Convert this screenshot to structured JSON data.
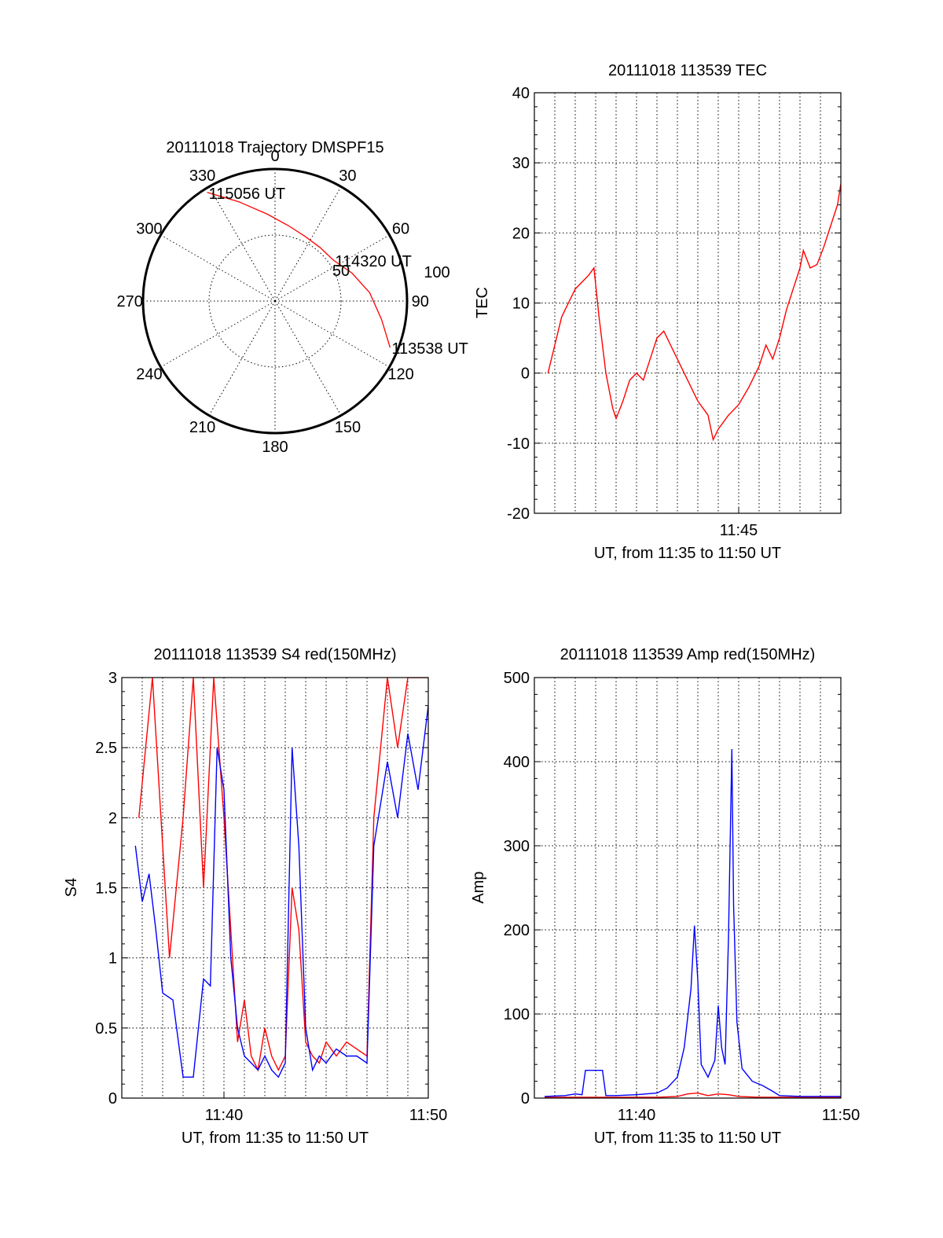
{
  "colors": {
    "red": "#ff0000",
    "blue": "#0000ff",
    "axis": "#000000",
    "grid": "#000000"
  },
  "chart_data": [
    {
      "type": "polar",
      "title": "20111018 Trajectory DMSPF15",
      "angle_labels": [
        "0",
        "30",
        "60",
        "90",
        "120",
        "150",
        "180",
        "210",
        "240",
        "270",
        "300",
        "330"
      ],
      "radius_labels": [
        "50",
        "100"
      ],
      "radius_max": 100,
      "series": [
        {
          "color": "red",
          "points": [
            [
              328,
              97
            ],
            [
              340,
              80
            ],
            [
              355,
              66
            ],
            [
              10,
              58
            ],
            [
              25,
              54
            ],
            [
              40,
              53
            ],
            [
              55,
              54
            ],
            [
              70,
              62
            ],
            [
              85,
              72
            ],
            [
              100,
              82
            ],
            [
              112,
              94
            ]
          ]
        }
      ],
      "annotations": [
        {
          "text": "115056 UT",
          "azimuth": 328,
          "radius": 97
        },
        {
          "text": "114320 UT",
          "azimuth": 55,
          "radius": 54
        },
        {
          "text": "113538 UT",
          "azimuth": 112,
          "radius": 94
        }
      ]
    },
    {
      "type": "line",
      "title": "20111018 113539 TEC",
      "xlabel": "UT, from 11:35 to 11:50 UT",
      "ylabel": "TEC",
      "xlim": [
        "11:35",
        "11:50"
      ],
      "ylim": [
        -20,
        40
      ],
      "yticks": [
        "-20",
        "-10",
        "0",
        "10",
        "20",
        "30",
        "40"
      ],
      "xticks": [
        "11:45"
      ],
      "grid": true,
      "series": [
        {
          "color": "red",
          "points": [
            [
              "11:35:40",
              0
            ],
            [
              "11:36:00",
              4
            ],
            [
              "11:36:20",
              8
            ],
            [
              "11:36:40",
              10
            ],
            [
              "11:37:00",
              12
            ],
            [
              "11:37:20",
              13
            ],
            [
              "11:37:40",
              14
            ],
            [
              "11:37:55",
              15
            ],
            [
              "11:38:10",
              8
            ],
            [
              "11:38:30",
              0
            ],
            [
              "11:38:50",
              -5
            ],
            [
              "11:39:00",
              -6.5
            ],
            [
              "11:39:20",
              -4
            ],
            [
              "11:39:40",
              -1
            ],
            [
              "11:40:00",
              0
            ],
            [
              "11:40:20",
              -1
            ],
            [
              "11:40:40",
              2
            ],
            [
              "11:41:00",
              5
            ],
            [
              "11:41:20",
              6
            ],
            [
              "11:41:40",
              4
            ],
            [
              "11:42:00",
              2
            ],
            [
              "11:42:30",
              -1
            ],
            [
              "11:43:00",
              -4
            ],
            [
              "11:43:30",
              -6
            ],
            [
              "11:43:45",
              -9.5
            ],
            [
              "11:44:00",
              -8
            ],
            [
              "11:44:30",
              -6
            ],
            [
              "11:45:00",
              -4.5
            ],
            [
              "11:45:30",
              -2
            ],
            [
              "11:46:00",
              1
            ],
            [
              "11:46:20",
              4
            ],
            [
              "11:46:40",
              2
            ],
            [
              "11:47:00",
              5
            ],
            [
              "11:47:20",
              9
            ],
            [
              "11:47:40",
              12
            ],
            [
              "11:48:00",
              15
            ],
            [
              "11:48:10",
              17.5
            ],
            [
              "11:48:30",
              15
            ],
            [
              "11:48:50",
              15.5
            ],
            [
              "11:49:10",
              18
            ],
            [
              "11:49:30",
              21
            ],
            [
              "11:49:50",
              24
            ],
            [
              "11:50:00",
              27
            ]
          ]
        }
      ]
    },
    {
      "type": "line",
      "title": "20111018 113539 S4 red(150MHz)",
      "xlabel": "UT, from 11:35 to 11:50 UT",
      "ylabel": "S4",
      "xlim": [
        "11:35",
        "11:50"
      ],
      "ylim": [
        0,
        3
      ],
      "yticks": [
        "0",
        "0.5",
        "1",
        "1.5",
        "2",
        "2.5",
        "3"
      ],
      "xticks": [
        "11:40",
        "11:50"
      ],
      "grid": true,
      "series": [
        {
          "color": "red",
          "name": "",
          "points": [
            [
              "11:35:50",
              2
            ],
            [
              "11:36:30",
              3
            ],
            [
              "11:37:20",
              1
            ],
            [
              "11:38:00",
              2
            ],
            [
              "11:38:30",
              3
            ],
            [
              "11:39:00",
              1.5
            ],
            [
              "11:39:30",
              3
            ],
            [
              "11:40:00",
              2
            ],
            [
              "11:40:20",
              1.2
            ],
            [
              "11:40:40",
              0.4
            ],
            [
              "11:41:00",
              0.7
            ],
            [
              "11:41:20",
              0.3
            ],
            [
              "11:41:40",
              0.2
            ],
            [
              "11:42:00",
              0.5
            ],
            [
              "11:42:20",
              0.3
            ],
            [
              "11:42:40",
              0.2
            ],
            [
              "11:43:00",
              0.3
            ],
            [
              "11:43:20",
              1.5
            ],
            [
              "11:43:40",
              1.2
            ],
            [
              "11:44:00",
              0.4
            ],
            [
              "11:44:20",
              0.3
            ],
            [
              "11:44:40",
              0.25
            ],
            [
              "11:45:00",
              0.4
            ],
            [
              "11:45:30",
              0.3
            ],
            [
              "11:46:00",
              0.4
            ],
            [
              "11:46:30",
              0.35
            ],
            [
              "11:47:00",
              0.3
            ],
            [
              "11:47:20",
              2
            ],
            [
              "11:48:00",
              3
            ],
            [
              "11:48:30",
              2.5
            ],
            [
              "11:49:00",
              3
            ],
            [
              "11:49:30",
              3
            ],
            [
              "11:50:00",
              3
            ]
          ]
        },
        {
          "color": "blue",
          "name": "",
          "points": [
            [
              "11:35:40",
              1.8
            ],
            [
              "11:36:00",
              1.4
            ],
            [
              "11:36:20",
              1.6
            ],
            [
              "11:36:40",
              1.2
            ],
            [
              "11:37:00",
              0.75
            ],
            [
              "11:37:30",
              0.7
            ],
            [
              "11:38:00",
              0.15
            ],
            [
              "11:38:30",
              0.15
            ],
            [
              "11:39:00",
              0.85
            ],
            [
              "11:39:20",
              0.8
            ],
            [
              "11:39:40",
              2.5
            ],
            [
              "11:40:00",
              2.2
            ],
            [
              "11:40:20",
              1.0
            ],
            [
              "11:40:40",
              0.5
            ],
            [
              "11:41:00",
              0.3
            ],
            [
              "11:41:20",
              0.25
            ],
            [
              "11:41:40",
              0.2
            ],
            [
              "11:42:00",
              0.3
            ],
            [
              "11:42:20",
              0.2
            ],
            [
              "11:42:40",
              0.15
            ],
            [
              "11:43:00",
              0.25
            ],
            [
              "11:43:20",
              2.5
            ],
            [
              "11:43:40",
              1.8
            ],
            [
              "11:44:00",
              0.5
            ],
            [
              "11:44:20",
              0.2
            ],
            [
              "11:44:40",
              0.3
            ],
            [
              "11:45:00",
              0.25
            ],
            [
              "11:45:30",
              0.35
            ],
            [
              "11:46:00",
              0.3
            ],
            [
              "11:46:30",
              0.3
            ],
            [
              "11:47:00",
              0.25
            ],
            [
              "11:47:20",
              1.8
            ],
            [
              "11:48:00",
              2.4
            ],
            [
              "11:48:30",
              2.0
            ],
            [
              "11:49:00",
              2.6
            ],
            [
              "11:49:30",
              2.2
            ],
            [
              "11:50:00",
              2.8
            ]
          ]
        }
      ]
    },
    {
      "type": "line",
      "title": "20111018 113539 Amp red(150MHz)",
      "xlabel": "UT, from 11:35 to 11:50 UT",
      "ylabel": "Amp",
      "xlim": [
        "11:35",
        "11:50"
      ],
      "ylim": [
        0,
        500
      ],
      "yticks": [
        "0",
        "100",
        "200",
        "300",
        "400",
        "500"
      ],
      "xticks": [
        "11:40",
        "11:50"
      ],
      "grid": true,
      "series": [
        {
          "color": "red",
          "name": "",
          "points": [
            [
              "11:35:30",
              1
            ],
            [
              "11:41:00",
              1
            ],
            [
              "11:42:00",
              2
            ],
            [
              "11:42:30",
              5
            ],
            [
              "11:43:00",
              6
            ],
            [
              "11:43:30",
              3
            ],
            [
              "11:44:00",
              5
            ],
            [
              "11:44:30",
              4
            ],
            [
              "11:45:00",
              2
            ],
            [
              "11:46:00",
              1
            ],
            [
              "11:50:00",
              1
            ]
          ]
        },
        {
          "color": "blue",
          "name": "",
          "points": [
            [
              "11:35:30",
              2
            ],
            [
              "11:36:30",
              3
            ],
            [
              "11:37:00",
              5
            ],
            [
              "11:37:20",
              4
            ],
            [
              "11:37:30",
              33
            ],
            [
              "11:38:20",
              33
            ],
            [
              "11:38:30",
              3
            ],
            [
              "11:39:00",
              3
            ],
            [
              "11:40:00",
              4
            ],
            [
              "11:41:00",
              6
            ],
            [
              "11:41:30",
              12
            ],
            [
              "11:42:00",
              25
            ],
            [
              "11:42:20",
              60
            ],
            [
              "11:42:40",
              130
            ],
            [
              "11:42:50",
              205
            ],
            [
              "11:43:00",
              140
            ],
            [
              "11:43:10",
              40
            ],
            [
              "11:43:30",
              25
            ],
            [
              "11:43:50",
              45
            ],
            [
              "11:44:00",
              110
            ],
            [
              "11:44:10",
              60
            ],
            [
              "11:44:20",
              40
            ],
            [
              "11:44:30",
              190
            ],
            [
              "11:44:40",
              415
            ],
            [
              "11:44:45",
              230
            ],
            [
              "11:44:55",
              90
            ],
            [
              "11:45:10",
              35
            ],
            [
              "11:45:40",
              20
            ],
            [
              "11:46:10",
              15
            ],
            [
              "11:46:40",
              8
            ],
            [
              "11:47:00",
              3
            ],
            [
              "11:48:00",
              2
            ],
            [
              "11:50:00",
              2
            ]
          ]
        }
      ]
    }
  ]
}
